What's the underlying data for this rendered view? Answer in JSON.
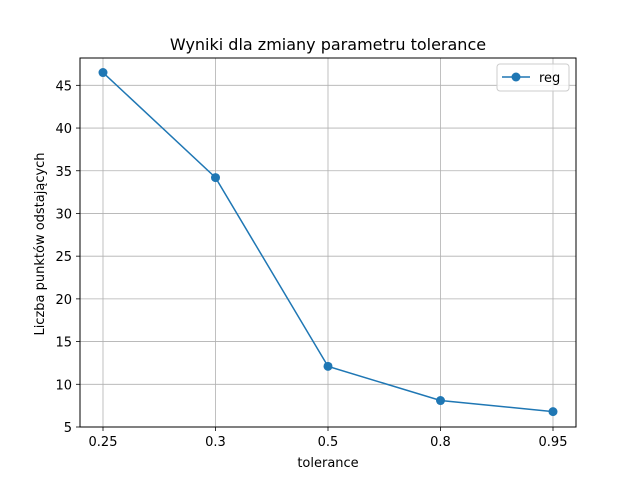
{
  "chart_data": {
    "type": "line",
    "title": "Wyniki dla zmiany parametru tolerance",
    "xlabel": "tolerance",
    "ylabel": "Liczba punktów odstających",
    "categories": [
      "0.25",
      "0.3",
      "0.5",
      "0.8",
      "0.95"
    ],
    "series": [
      {
        "name": "reg",
        "values": [
          46.5,
          34.2,
          12.1,
          8.1,
          6.8
        ],
        "color": "#1f77b4",
        "marker": "circle"
      }
    ],
    "ylim": [
      5,
      48.2
    ],
    "yticks": [
      5,
      10,
      15,
      20,
      25,
      30,
      35,
      40,
      45
    ],
    "grid": true,
    "legend_position": "top-right"
  }
}
